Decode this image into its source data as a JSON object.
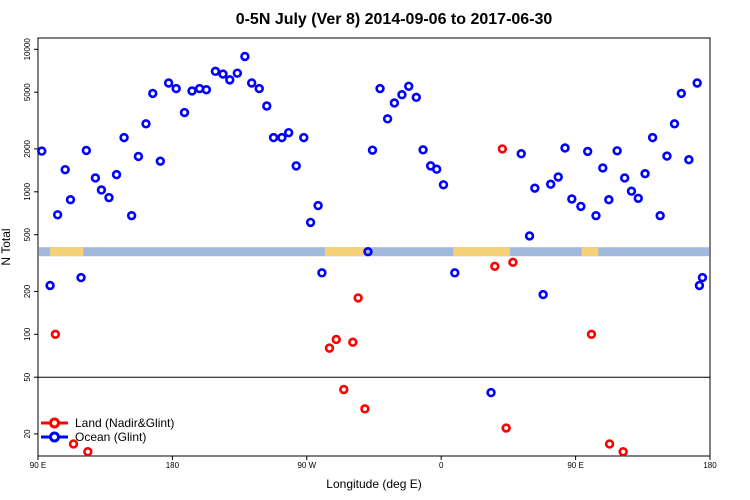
{
  "chart_data": {
    "type": "scatter",
    "title": "0-5N July (Ver 8)   2014-09-06 to 2017-06-30",
    "xlabel": "Longitude (deg E)",
    "ylabel": "N Total",
    "y_scale": "log",
    "ylim": [
      14,
      12000
    ],
    "x_ticks": [
      "90 E",
      "180",
      "90 W",
      "0",
      "90 E",
      "180"
    ],
    "y_ticks": [
      20,
      50,
      100,
      200,
      500,
      1000,
      2000,
      5000,
      10000
    ],
    "reference_line_y": 50,
    "x_categories_count": 89,
    "series": [
      {
        "name": "Land (Nadir&Glint)",
        "color": "#ff0000",
        "points": [
          {
            "x": 2.3,
            "y": 100
          },
          {
            "x": 4.7,
            "y": 17
          },
          {
            "x": 6.6,
            "y": 15
          },
          {
            "x": 38.6,
            "y": 80
          },
          {
            "x": 39.5,
            "y": 92
          },
          {
            "x": 40.5,
            "y": 41
          },
          {
            "x": 41.7,
            "y": 88
          },
          {
            "x": 42.4,
            "y": 180
          },
          {
            "x": 43.3,
            "y": 30
          },
          {
            "x": 60.5,
            "y": 300
          },
          {
            "x": 61.5,
            "y": 2000
          },
          {
            "x": 62.0,
            "y": 22
          },
          {
            "x": 62.9,
            "y": 320
          },
          {
            "x": 73.3,
            "y": 100
          },
          {
            "x": 75.7,
            "y": 17
          },
          {
            "x": 77.5,
            "y": 15
          }
        ]
      },
      {
        "name": "Ocean (Glint)",
        "color": "#0000ff",
        "points": [
          {
            "x": 0.5,
            "y": 1930
          },
          {
            "x": 1.6,
            "y": 220
          },
          {
            "x": 2.6,
            "y": 690
          },
          {
            "x": 3.6,
            "y": 1430
          },
          {
            "x": 4.3,
            "y": 880
          },
          {
            "x": 5.7,
            "y": 250
          },
          {
            "x": 6.4,
            "y": 1950
          },
          {
            "x": 7.6,
            "y": 1250
          },
          {
            "x": 8.4,
            "y": 1030
          },
          {
            "x": 9.4,
            "y": 910
          },
          {
            "x": 10.4,
            "y": 1320
          },
          {
            "x": 11.4,
            "y": 2400
          },
          {
            "x": 12.4,
            "y": 680
          },
          {
            "x": 13.3,
            "y": 1770
          },
          {
            "x": 14.3,
            "y": 3000
          },
          {
            "x": 15.2,
            "y": 4900
          },
          {
            "x": 16.2,
            "y": 1640
          },
          {
            "x": 17.3,
            "y": 5800
          },
          {
            "x": 18.3,
            "y": 5300
          },
          {
            "x": 19.4,
            "y": 3600
          },
          {
            "x": 20.4,
            "y": 5100
          },
          {
            "x": 21.4,
            "y": 5300
          },
          {
            "x": 22.3,
            "y": 5200
          },
          {
            "x": 23.5,
            "y": 7000
          },
          {
            "x": 24.5,
            "y": 6700
          },
          {
            "x": 25.4,
            "y": 6100
          },
          {
            "x": 26.4,
            "y": 6800
          },
          {
            "x": 27.4,
            "y": 8900
          },
          {
            "x": 28.3,
            "y": 5800
          },
          {
            "x": 29.3,
            "y": 5300
          },
          {
            "x": 30.3,
            "y": 4000
          },
          {
            "x": 31.2,
            "y": 2400
          },
          {
            "x": 32.3,
            "y": 2400
          },
          {
            "x": 33.2,
            "y": 2600
          },
          {
            "x": 34.2,
            "y": 1520
          },
          {
            "x": 35.2,
            "y": 2400
          },
          {
            "x": 36.1,
            "y": 610
          },
          {
            "x": 37.1,
            "y": 800
          },
          {
            "x": 37.6,
            "y": 270
          },
          {
            "x": 43.7,
            "y": 380
          },
          {
            "x": 44.3,
            "y": 1960
          },
          {
            "x": 45.3,
            "y": 5300
          },
          {
            "x": 46.3,
            "y": 3250
          },
          {
            "x": 47.2,
            "y": 4200
          },
          {
            "x": 48.2,
            "y": 4800
          },
          {
            "x": 49.1,
            "y": 5500
          },
          {
            "x": 50.1,
            "y": 4600
          },
          {
            "x": 51.0,
            "y": 1970
          },
          {
            "x": 52.0,
            "y": 1520
          },
          {
            "x": 52.8,
            "y": 1440
          },
          {
            "x": 53.7,
            "y": 1120
          },
          {
            "x": 55.2,
            "y": 270
          },
          {
            "x": 60.0,
            "y": 39
          },
          {
            "x": 64.0,
            "y": 1850
          },
          {
            "x": 65.1,
            "y": 490
          },
          {
            "x": 65.8,
            "y": 1060
          },
          {
            "x": 66.9,
            "y": 190
          },
          {
            "x": 67.9,
            "y": 1130
          },
          {
            "x": 68.9,
            "y": 1270
          },
          {
            "x": 69.8,
            "y": 2030
          },
          {
            "x": 70.7,
            "y": 890
          },
          {
            "x": 71.9,
            "y": 790
          },
          {
            "x": 72.8,
            "y": 1920
          },
          {
            "x": 73.9,
            "y": 680
          },
          {
            "x": 74.8,
            "y": 1470
          },
          {
            "x": 75.6,
            "y": 880
          },
          {
            "x": 76.7,
            "y": 1940
          },
          {
            "x": 77.7,
            "y": 1250
          },
          {
            "x": 78.6,
            "y": 1010
          },
          {
            "x": 79.5,
            "y": 900
          },
          {
            "x": 80.4,
            "y": 1340
          },
          {
            "x": 81.4,
            "y": 2400
          },
          {
            "x": 82.4,
            "y": 680
          },
          {
            "x": 83.3,
            "y": 1780
          },
          {
            "x": 84.3,
            "y": 3000
          },
          {
            "x": 85.2,
            "y": 4900
          },
          {
            "x": 86.2,
            "y": 1680
          },
          {
            "x": 87.3,
            "y": 5800
          },
          {
            "x": 87.6,
            "y": 220
          },
          {
            "x": 88.0,
            "y": 250
          }
        ]
      }
    ],
    "legend": {
      "placement": "bottom-left",
      "entries": [
        {
          "label": "Land (Nadir&Glint)",
          "color": "#ff0000"
        },
        {
          "label": "Ocean (Glint)",
          "color": "#0000ff"
        }
      ]
    },
    "land_band": {
      "y_center": 380,
      "band_color": "#a2b9dc",
      "land_color": "#f5d27a"
    }
  }
}
